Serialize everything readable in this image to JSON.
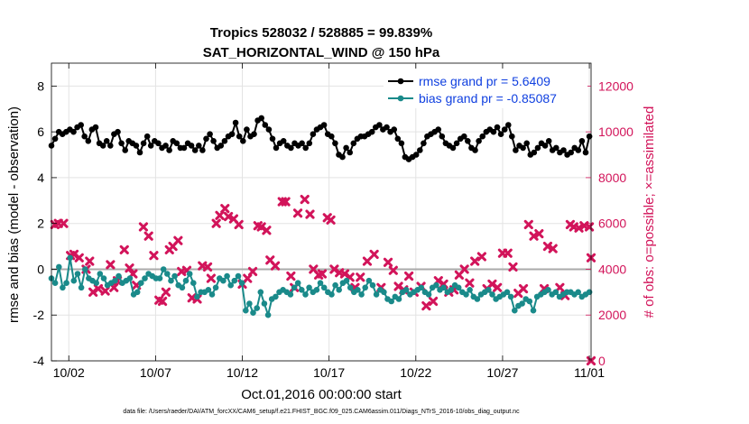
{
  "chart_data": {
    "type": "line",
    "title_line1": "Tropics 528032 / 528885 = 99.839%",
    "title_line2": "SAT_HORIZONTAL_WIND @ 150 hPa",
    "xlabel": "Oct.01,2016 00:00:00 start",
    "ylabel_left": "rmse and bias (model - observation)",
    "ylabel_right": "# of obs: o=possible; ×=assimilated",
    "x_tick_labels": [
      "10/02",
      "10/07",
      "10/12",
      "10/17",
      "10/22",
      "10/27",
      "11/01"
    ],
    "x_tick_days": [
      1,
      6,
      11,
      16,
      21,
      26,
      31
    ],
    "xlim": [
      0.0,
      31.1
    ],
    "ylim_left": [
      -4,
      9
    ],
    "left_ticks": [
      "8",
      "6",
      "4",
      "2",
      "0",
      "-2",
      "-4"
    ],
    "left_tick_values": [
      8,
      6,
      4,
      2,
      0,
      -2,
      -4
    ],
    "ylim_right": [
      0,
      13000
    ],
    "right_ticks": [
      "12000",
      "10000",
      "8000",
      "6000",
      "4000",
      "2000",
      "0"
    ],
    "right_tick_values": [
      12000,
      10000,
      8000,
      6000,
      4000,
      2000,
      0
    ],
    "footnote": "data file: /Users/raeder/DAI/ATM_forcXX/CAM6_setup/f.e21.FHIST_BGC.f09_025.CAM6assim.011/Diags_NTrS_2016-10/obs_diag_output.nc",
    "colors": {
      "rmse": "#000000",
      "bias": "#1a8a8a",
      "obs": "#d2145a",
      "zero_line": "#aaaaaa",
      "legend_text": "#1040e0"
    },
    "series": [
      {
        "name": "rmse grand pr = 5.6409",
        "axis": "left",
        "values": [
          5.4,
          5.7,
          6.0,
          5.9,
          6.0,
          6.1,
          6.0,
          6.2,
          6.3,
          5.8,
          5.6,
          6.1,
          6.2,
          5.5,
          5.4,
          5.6,
          5.4,
          5.9,
          6.0,
          5.5,
          5.2,
          5.6,
          5.5,
          5.4,
          5.1,
          5.5,
          5.8,
          5.4,
          5.6,
          5.5,
          5.3,
          5.4,
          5.2,
          5.6,
          5.5,
          5.3,
          5.3,
          5.5,
          5.4,
          5.2,
          5.4,
          5.2,
          5.7,
          5.9,
          5.6,
          5.3,
          5.4,
          5.6,
          5.8,
          5.9,
          6.4,
          5.8,
          5.6,
          6.1,
          5.8,
          5.9,
          6.5,
          6.6,
          6.3,
          6.1,
          5.7,
          5.3,
          5.5,
          5.6,
          5.4,
          5.3,
          5.5,
          5.4,
          5.5,
          5.3,
          5.5,
          5.9,
          6.1,
          6.2,
          6.3,
          5.9,
          5.8,
          5.5,
          5.0,
          4.9,
          5.3,
          5.1,
          5.5,
          5.7,
          5.8,
          5.8,
          5.9,
          6.0,
          6.2,
          6.3,
          6.1,
          6.2,
          6.0,
          6.1,
          5.7,
          5.5,
          4.9,
          4.8,
          4.9,
          5.0,
          5.2,
          5.5,
          5.8,
          5.9,
          6.0,
          6.1,
          5.8,
          5.5,
          5.4,
          5.3,
          5.5,
          5.7,
          5.8,
          5.6,
          5.3,
          5.2,
          5.6,
          5.8,
          6.0,
          6.1,
          6.0,
          6.2,
          5.9,
          6.1,
          6.3,
          5.8,
          5.2,
          5.4,
          5.3,
          5.5,
          5.0,
          5.1,
          5.3,
          5.5,
          5.4,
          5.6,
          5.2,
          5.3,
          5.1,
          5.2,
          5.0,
          5.1,
          5.3,
          5.2,
          5.6,
          5.1,
          5.8
        ]
      },
      {
        "name": "bias grand pr = -0.85087",
        "axis": "left",
        "values": [
          -0.4,
          -0.6,
          0.1,
          -0.8,
          -0.6,
          0.5,
          -0.5,
          -0.2,
          -0.8,
          0.0,
          -0.4,
          -0.5,
          -0.6,
          -0.2,
          -0.4,
          -0.7,
          -0.6,
          -0.5,
          -0.3,
          -0.6,
          -0.5,
          -0.4,
          -1.1,
          -1.0,
          -0.6,
          -0.4,
          -0.2,
          -0.3,
          -0.4,
          -0.4,
          0.0,
          -0.2,
          -0.5,
          -0.3,
          -0.7,
          -0.8,
          -0.5,
          -0.2,
          -0.6,
          -1.2,
          -1.0,
          -1.0,
          -0.9,
          -1.1,
          -0.8,
          -0.4,
          -0.5,
          -0.3,
          -0.7,
          -0.5,
          -0.3,
          -0.6,
          -1.8,
          -1.5,
          -1.9,
          -1.7,
          -1.0,
          -1.5,
          -2.0,
          -1.3,
          -1.2,
          -1.0,
          -0.9,
          -1.0,
          -1.1,
          -0.8,
          -0.6,
          -0.9,
          -1.1,
          -0.8,
          -1.0,
          -0.9,
          -0.6,
          -0.8,
          -1.0,
          -1.1,
          -0.7,
          -0.9,
          -0.6,
          -0.5,
          -0.8,
          -1.0,
          -0.9,
          -1.1,
          -0.8,
          -0.5,
          -0.7,
          -1.1,
          -0.9,
          -1.0,
          -1.3,
          -1.4,
          -1.2,
          -1.3,
          -1.0,
          -0.9,
          -1.1,
          -1.0,
          -0.9,
          -0.8,
          -1.0,
          -1.1,
          -0.8,
          -0.7,
          -0.9,
          -0.8,
          -1.0,
          -0.9,
          -0.7,
          -0.8,
          -1.0,
          -1.1,
          -0.9,
          -1.2,
          -1.3,
          -1.1,
          -1.0,
          -0.9,
          -1.1,
          -1.3,
          -1.2,
          -1.1,
          -1.0,
          -1.2,
          -1.8,
          -1.6,
          -1.5,
          -1.3,
          -1.4,
          -1.8,
          -1.2,
          -1.1,
          -1.0,
          -0.9,
          -1.1,
          -1.0,
          -1.2,
          -1.1,
          -1.0,
          -1.0,
          -1.1,
          -1.0,
          -1.2,
          -1.1,
          -1.0
        ]
      },
      {
        "name": "obs assimilated",
        "axis": "right",
        "marker": "x",
        "points": [
          [
            0.2,
            5950
          ],
          [
            0.4,
            6000
          ],
          [
            0.7,
            6000
          ],
          [
            1.1,
            4600
          ],
          [
            1.3,
            4650
          ],
          [
            1.6,
            4500
          ],
          [
            2.0,
            4000
          ],
          [
            2.2,
            4350
          ],
          [
            2.4,
            3000
          ],
          [
            2.7,
            3150
          ],
          [
            3.1,
            3050
          ],
          [
            3.4,
            4200
          ],
          [
            3.6,
            3200
          ],
          [
            3.8,
            3500
          ],
          [
            4.2,
            4850
          ],
          [
            4.5,
            4050
          ],
          [
            4.7,
            3800
          ],
          [
            4.9,
            3300
          ],
          [
            5.3,
            5850
          ],
          [
            5.6,
            5450
          ],
          [
            5.9,
            4600
          ],
          [
            6.2,
            2650
          ],
          [
            6.4,
            2600
          ],
          [
            6.6,
            3000
          ],
          [
            6.8,
            4850
          ],
          [
            7.0,
            5000
          ],
          [
            7.3,
            5250
          ],
          [
            7.5,
            3900
          ],
          [
            7.8,
            3950
          ],
          [
            8.1,
            2750
          ],
          [
            8.4,
            2700
          ],
          [
            8.7,
            4150
          ],
          [
            9.0,
            4100
          ],
          [
            9.2,
            3600
          ],
          [
            9.5,
            6000
          ],
          [
            9.7,
            6350
          ],
          [
            10.0,
            6650
          ],
          [
            10.2,
            6300
          ],
          [
            10.5,
            6200
          ],
          [
            10.8,
            5950
          ],
          [
            11.0,
            3350
          ],
          [
            11.3,
            3600
          ],
          [
            11.6,
            3900
          ],
          [
            11.9,
            5900
          ],
          [
            12.1,
            5850
          ],
          [
            12.4,
            5700
          ],
          [
            12.6,
            4400
          ],
          [
            12.9,
            4150
          ],
          [
            13.3,
            6950
          ],
          [
            13.5,
            6950
          ],
          [
            13.8,
            3700
          ],
          [
            14.0,
            3200
          ],
          [
            14.2,
            6450
          ],
          [
            14.6,
            7050
          ],
          [
            14.9,
            6400
          ],
          [
            15.1,
            4000
          ],
          [
            15.4,
            3750
          ],
          [
            15.6,
            3800
          ],
          [
            15.9,
            6250
          ],
          [
            16.1,
            6150
          ],
          [
            16.3,
            4000
          ],
          [
            16.6,
            3850
          ],
          [
            16.9,
            3800
          ],
          [
            17.2,
            3650
          ],
          [
            17.5,
            3200
          ],
          [
            17.8,
            3650
          ],
          [
            18.2,
            4350
          ],
          [
            18.6,
            4650
          ],
          [
            19.0,
            3200
          ],
          [
            19.4,
            4300
          ],
          [
            19.7,
            3950
          ],
          [
            20.0,
            3250
          ],
          [
            20.3,
            3100
          ],
          [
            20.6,
            3700
          ],
          [
            20.9,
            3000
          ],
          [
            21.3,
            3250
          ],
          [
            21.6,
            2400
          ],
          [
            22.0,
            2600
          ],
          [
            22.3,
            3500
          ],
          [
            22.6,
            3350
          ],
          [
            22.9,
            3000
          ],
          [
            23.2,
            3100
          ],
          [
            23.5,
            3750
          ],
          [
            23.8,
            4000
          ],
          [
            24.1,
            3400
          ],
          [
            24.4,
            4350
          ],
          [
            24.8,
            4550
          ],
          [
            25.1,
            3150
          ],
          [
            25.4,
            3350
          ],
          [
            25.7,
            3200
          ],
          [
            26.0,
            4700
          ],
          [
            26.3,
            4700
          ],
          [
            26.6,
            4100
          ],
          [
            26.9,
            2950
          ],
          [
            27.2,
            3150
          ],
          [
            27.5,
            5950
          ],
          [
            27.8,
            5450
          ],
          [
            28.1,
            5550
          ],
          [
            28.4,
            3150
          ],
          [
            28.6,
            5000
          ],
          [
            28.9,
            4900
          ],
          [
            29.3,
            3200
          ],
          [
            29.6,
            2850
          ],
          [
            29.9,
            5950
          ],
          [
            30.1,
            5850
          ],
          [
            30.4,
            5800
          ],
          [
            30.7,
            5900
          ],
          [
            31.0,
            5850
          ],
          [
            31.3,
            4500
          ],
          [
            31.5,
            0
          ]
        ]
      }
    ]
  }
}
